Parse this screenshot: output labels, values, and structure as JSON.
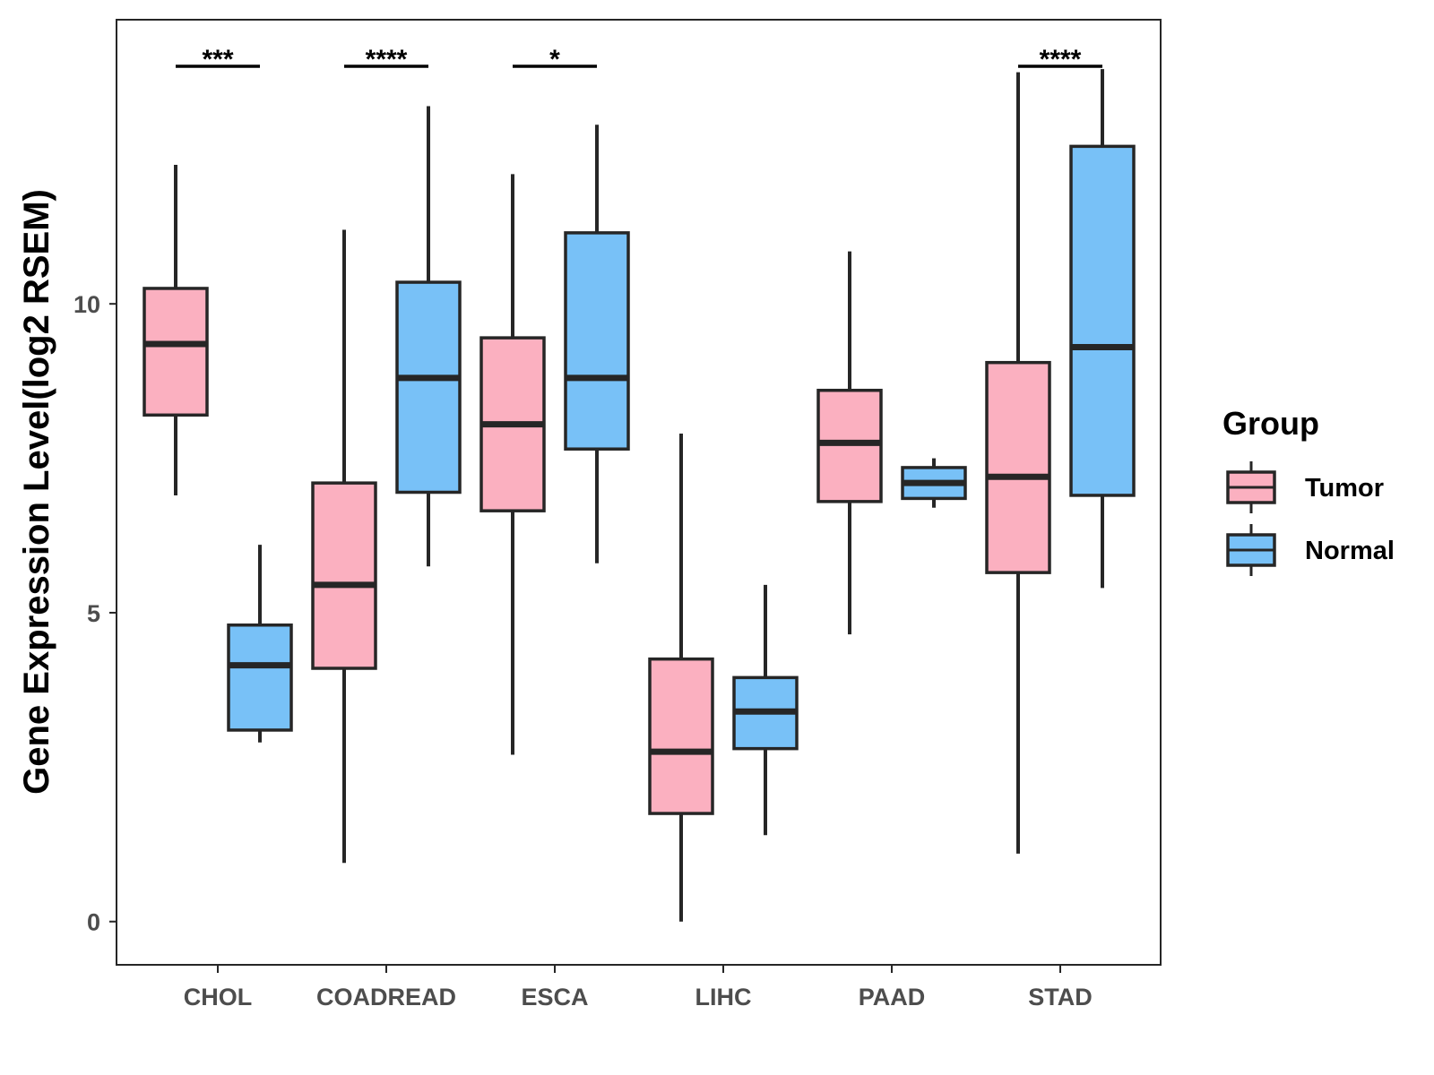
{
  "chart_data": {
    "type": "boxplot",
    "title": "",
    "xlabel": "",
    "ylabel": "Gene Expression Level(log2 RSEM)",
    "ylim": [
      -0.7,
      14.6
    ],
    "yticks": [
      0,
      5,
      10
    ],
    "categories": [
      "CHOL",
      "COADREAD",
      "ESCA",
      "LIHC",
      "PAAD",
      "STAD"
    ],
    "legend": {
      "title": "Group",
      "position": "right",
      "entries": [
        "Tumor",
        "Normal"
      ]
    },
    "colors": {
      "Tumor": "#fbb0c0",
      "Normal": "#78c1f7",
      "outline": "#262626",
      "significance": "#000000"
    },
    "series": [
      {
        "name": "Tumor",
        "boxes": [
          {
            "category": "CHOL",
            "whisker_low": 6.9,
            "q1": 8.2,
            "median": 9.35,
            "q3": 10.25,
            "whisker_high": 12.25
          },
          {
            "category": "COADREAD",
            "whisker_low": 0.95,
            "q1": 4.1,
            "median": 5.45,
            "q3": 7.1,
            "whisker_high": 11.2
          },
          {
            "category": "ESCA",
            "whisker_low": 2.7,
            "q1": 6.65,
            "median": 8.05,
            "q3": 9.45,
            "whisker_high": 12.1
          },
          {
            "category": "LIHC",
            "whisker_low": 0.0,
            "q1": 1.75,
            "median": 2.75,
            "q3": 4.25,
            "whisker_high": 7.9
          },
          {
            "category": "PAAD",
            "whisker_low": 4.65,
            "q1": 6.8,
            "median": 7.75,
            "q3": 8.6,
            "whisker_high": 10.85
          },
          {
            "category": "STAD",
            "whisker_low": 1.1,
            "q1": 5.65,
            "median": 7.2,
            "q3": 9.05,
            "whisker_high": 13.75
          }
        ]
      },
      {
        "name": "Normal",
        "boxes": [
          {
            "category": "CHOL",
            "whisker_low": 2.9,
            "q1": 3.1,
            "median": 4.15,
            "q3": 4.8,
            "whisker_high": 6.1
          },
          {
            "category": "COADREAD",
            "whisker_low": 5.75,
            "q1": 6.95,
            "median": 8.8,
            "q3": 10.35,
            "whisker_high": 13.2
          },
          {
            "category": "ESCA",
            "whisker_low": 5.8,
            "q1": 7.65,
            "median": 8.8,
            "q3": 11.15,
            "whisker_high": 12.9
          },
          {
            "category": "LIHC",
            "whisker_low": 1.4,
            "q1": 2.8,
            "median": 3.4,
            "q3": 3.95,
            "whisker_high": 5.45
          },
          {
            "category": "PAAD",
            "whisker_low": 6.7,
            "q1": 6.85,
            "median": 7.1,
            "q3": 7.35,
            "whisker_high": 7.5
          },
          {
            "category": "STAD",
            "whisker_low": 5.4,
            "q1": 6.9,
            "median": 9.3,
            "q3": 12.55,
            "whisker_high": 13.8
          }
        ]
      }
    ],
    "significance": [
      {
        "category": "CHOL",
        "label": "***"
      },
      {
        "category": "COADREAD",
        "label": "****"
      },
      {
        "category": "ESCA",
        "label": "*"
      },
      {
        "category": "STAD",
        "label": "****"
      }
    ]
  }
}
